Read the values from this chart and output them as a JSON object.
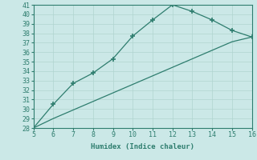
{
  "xlabel": "Humidex (Indice chaleur)",
  "bg_color": "#cbe8e7",
  "line_color": "#2e7d6e",
  "grid_color": "#b0d4d0",
  "marker": "+",
  "line1_x": [
    5,
    6,
    7,
    8,
    9,
    10,
    11,
    12,
    13,
    14,
    15,
    16
  ],
  "line1_y": [
    28.0,
    30.5,
    32.7,
    33.8,
    35.3,
    37.7,
    39.4,
    41.0,
    40.3,
    39.4,
    38.3,
    37.6
  ],
  "line1_marker_x": [
    6,
    7,
    8,
    9,
    10,
    11,
    12,
    13,
    14,
    15,
    16
  ],
  "line1_marker_y": [
    30.5,
    32.7,
    33.8,
    35.3,
    37.7,
    39.4,
    41.0,
    40.3,
    39.4,
    38.3,
    37.6
  ],
  "line2_x": [
    5,
    6,
    7,
    8,
    9,
    10,
    11,
    12,
    13,
    14,
    15,
    16
  ],
  "line2_y": [
    28.0,
    29.0,
    29.9,
    30.8,
    31.7,
    32.6,
    33.5,
    34.4,
    35.3,
    36.2,
    37.1,
    37.6
  ],
  "xlim": [
    5,
    16
  ],
  "ylim": [
    28,
    41
  ],
  "xticks": [
    5,
    6,
    7,
    8,
    9,
    10,
    11,
    12,
    13,
    14,
    15,
    16
  ],
  "yticks": [
    28,
    29,
    30,
    31,
    32,
    33,
    34,
    35,
    36,
    37,
    38,
    39,
    40,
    41
  ],
  "fontsize_label": 6.5,
  "fontsize_tick": 6,
  "linewidth": 0.9,
  "markersize": 5
}
